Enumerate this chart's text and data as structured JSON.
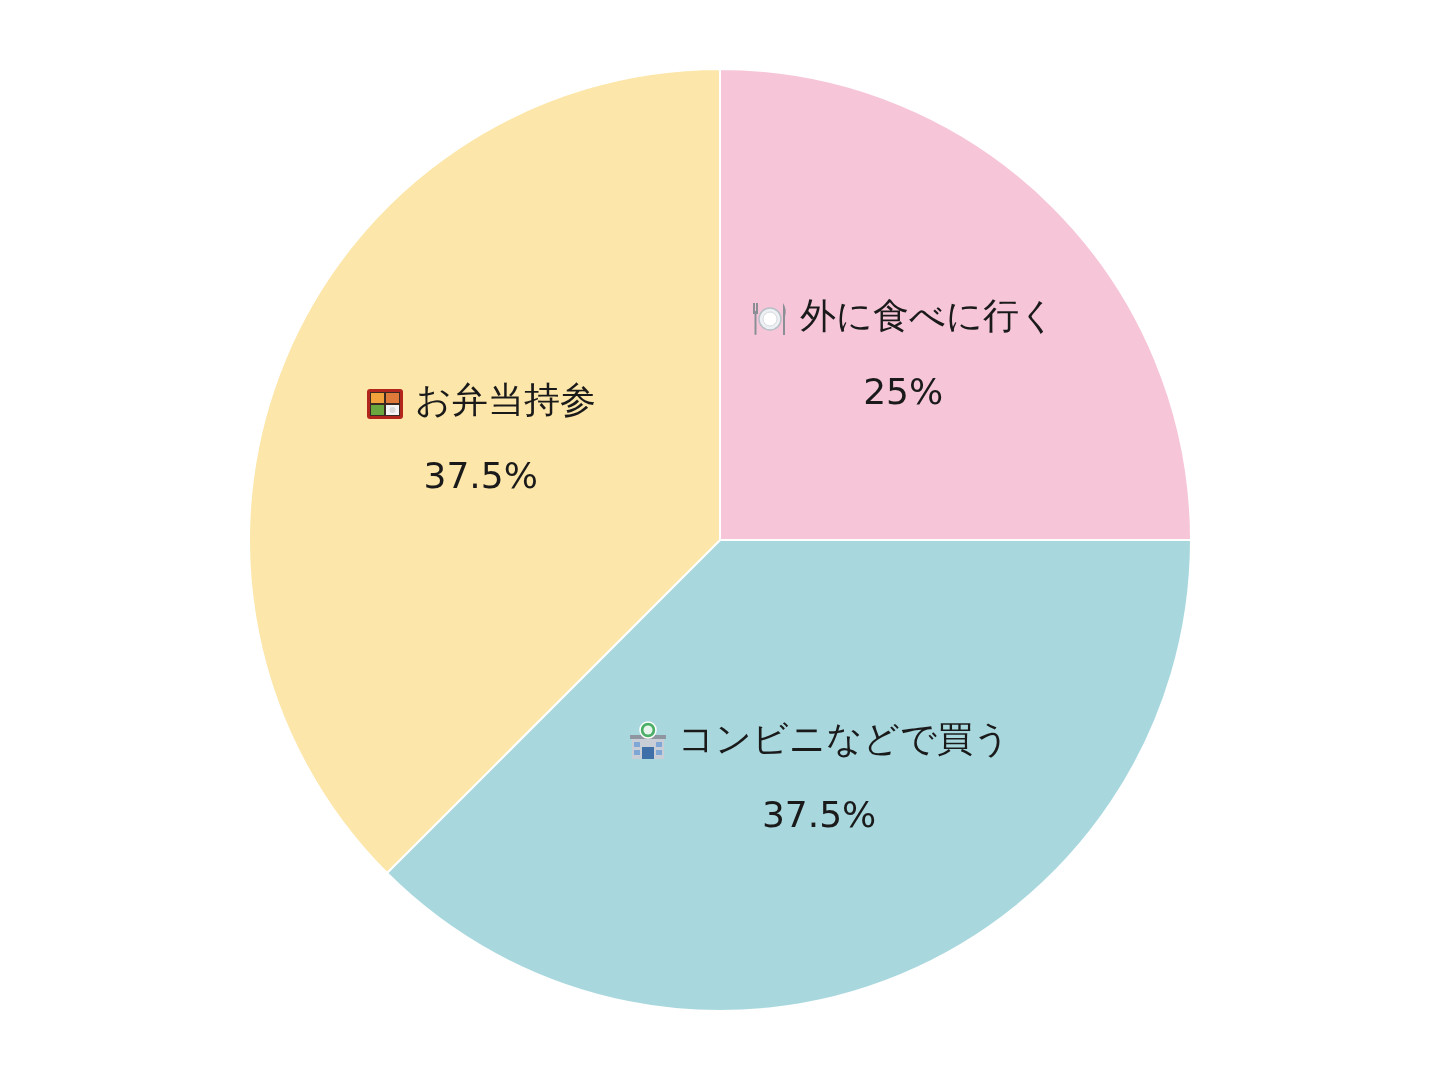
{
  "chart_data": {
    "type": "pie",
    "categories": [
      "外に食べに行く",
      "コンビニなどで買う",
      "お弁当持参"
    ],
    "values": [
      25,
      37.5,
      37.5
    ],
    "colors": [
      "#f6c6d8",
      "#a8d8de",
      "#fce6a9"
    ],
    "value_labels": [
      "25%",
      "37.5%",
      "37.5%"
    ]
  }
}
